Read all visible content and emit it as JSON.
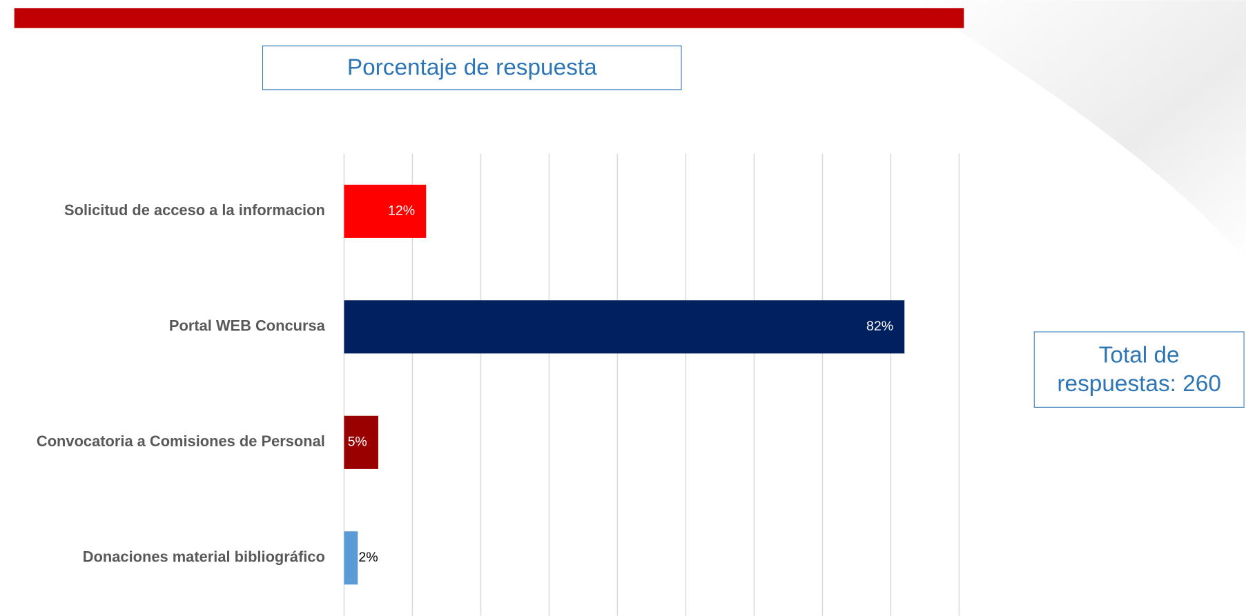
{
  "chart_data": {
    "type": "barh",
    "title": "Porcentaje de respuesta",
    "categories": [
      "Solicitud de acceso a la informacion",
      "Portal WEB Concursa",
      "Convocatoria a Comisiones de Personal",
      "Donaciones material bibliográfico"
    ],
    "values": [
      12,
      82,
      5,
      2
    ],
    "value_labels": [
      "12%",
      "82%",
      "5%",
      "2%"
    ],
    "colors": [
      "#ff0000",
      "#002060",
      "#990000",
      "#5b9bd5"
    ],
    "xlim": [
      0,
      90
    ],
    "xticks": [
      0,
      10,
      20,
      30,
      40,
      50,
      60,
      70,
      80,
      90
    ],
    "grid": true,
    "annotation": "Total de respuestas: 260"
  }
}
